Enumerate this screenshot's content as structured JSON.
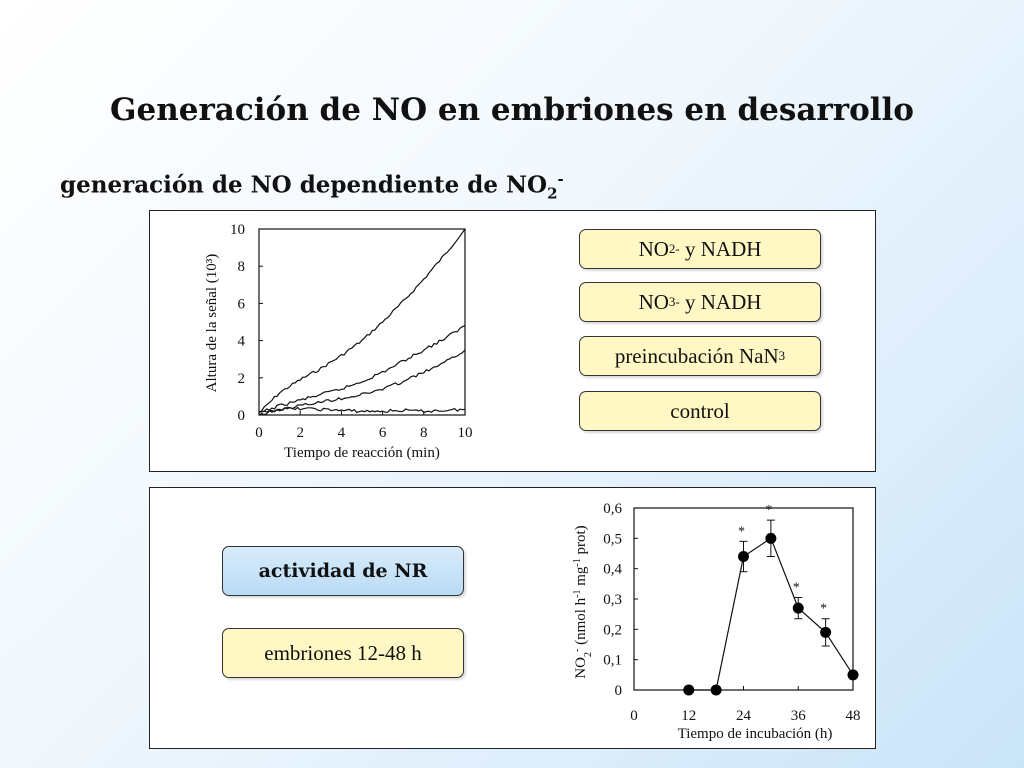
{
  "slide": {
    "title": "Generación de NO en embriones en desarrollo",
    "subtitle_main": "generación de NO dependiente de NO",
    "subtitle_sub": "2",
    "subtitle_sup": "-"
  },
  "top_panel": {
    "labels": [
      {
        "main": "NO",
        "sub": "2",
        "sup": "-",
        "rest": " y NADH"
      },
      {
        "main": "NO",
        "sub": "3",
        "sup": "-",
        "rest": " y NADH"
      },
      {
        "main": "preincubación NaN",
        "sub": "3",
        "sup": "",
        "rest": ""
      },
      {
        "main": "control",
        "sub": "",
        "sup": "",
        "rest": ""
      }
    ]
  },
  "bottom_panel": {
    "nr_label": "actividad de NR",
    "embryo_label": "embriones 12-48 h"
  },
  "chart_data": [
    {
      "type": "line",
      "title": "",
      "xlabel": "Tiempo de reacción (min)",
      "ylabel": "Altura de la señal (10³)",
      "xlim": [
        0,
        10
      ],
      "ylim": [
        0,
        10
      ],
      "x_ticks": [
        "0",
        "2",
        "4",
        "6",
        "8",
        "10"
      ],
      "y_ticks": [
        "0",
        "2",
        "4",
        "6",
        "8",
        "10"
      ],
      "series": [
        {
          "x": [
            0,
            1,
            2,
            3,
            4,
            5,
            6,
            7,
            8,
            9,
            10
          ],
          "values": [
            0.1,
            1.2,
            1.9,
            2.5,
            3.2,
            4.0,
            5.0,
            6.1,
            7.3,
            8.6,
            10.0
          ]
        },
        {
          "x": [
            0,
            1,
            2,
            3,
            4,
            5,
            6,
            7,
            8,
            9,
            10
          ],
          "values": [
            0.1,
            0.5,
            0.8,
            1.1,
            1.4,
            1.8,
            2.3,
            2.9,
            3.5,
            4.1,
            4.8
          ]
        },
        {
          "x": [
            0,
            1,
            2,
            3,
            4,
            5,
            6,
            7,
            8,
            9,
            10
          ],
          "values": [
            0.0,
            0.3,
            0.5,
            0.7,
            0.9,
            1.1,
            1.4,
            1.8,
            2.3,
            2.8,
            3.5
          ]
        },
        {
          "x": [
            0,
            1,
            2,
            3,
            4,
            5,
            6,
            7,
            8,
            9,
            10
          ],
          "values": [
            0.1,
            0.3,
            0.35,
            0.3,
            0.25,
            0.2,
            0.2,
            0.25,
            0.2,
            0.25,
            0.3
          ]
        }
      ],
      "grid": false
    },
    {
      "type": "line",
      "title": "",
      "xlabel": "Tiempo de incubación (h)",
      "ylabel": "NO2- (nmol h-1 mg-1 prot)",
      "ylabel_parts": {
        "a": "NO",
        "b": "2",
        "c": "-",
        "d": " (nmol h",
        "e": "-1",
        "f": " mg",
        "g": "-1",
        "h": " prot)"
      },
      "xlim": [
        0,
        48
      ],
      "ylim": [
        0,
        0.6
      ],
      "x_ticks": [
        "0",
        "12",
        "24",
        "36",
        "48"
      ],
      "y_ticks": [
        "0",
        "0,1",
        "0,2",
        "0,3",
        "0,4",
        "0,5",
        "0,6"
      ],
      "x": [
        12,
        18,
        24,
        30,
        36,
        42,
        48
      ],
      "values": [
        0.0,
        0.0,
        0.44,
        0.5,
        0.27,
        0.19,
        0.05
      ],
      "error": [
        0,
        0,
        0.05,
        0.06,
        0.035,
        0.045,
        0.01
      ],
      "significance": [
        "",
        "",
        "*",
        "*",
        "*",
        "*",
        ""
      ],
      "grid": false
    }
  ]
}
